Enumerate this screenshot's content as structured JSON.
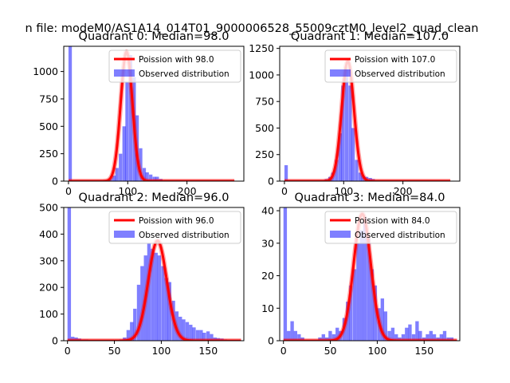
{
  "figure_title": "n file: modeM0/AS1A14_014T01_9000006528_55009cztM0_level2_quad_clean",
  "colors": {
    "poisson": "#ff0000",
    "observed": "#0000ff",
    "axis": "#000000",
    "background": "#ffffff"
  },
  "chart_data": [
    {
      "type": "bar",
      "title": "Quadrant 0: Median=98.0",
      "xlabel": "",
      "ylabel": "",
      "xlim": [
        -8,
        296
      ],
      "ylim": [
        0,
        1230
      ],
      "xticks": [
        0,
        100,
        200
      ],
      "yticks": [
        0,
        250,
        500,
        750,
        1000
      ],
      "legend_position": "top-right",
      "legend": [
        "Poission with 98.0",
        "Observed distribution"
      ],
      "bin_width": 5.7,
      "observed": {
        "name": "Observed distribution",
        "x": [
          0,
          62,
          68,
          74,
          79,
          85,
          91,
          96,
          102,
          108,
          113,
          119,
          125,
          130,
          136,
          142,
          147,
          153,
          159,
          165
        ],
        "values": [
          1230,
          10,
          30,
          50,
          120,
          250,
          500,
          900,
          1150,
          950,
          600,
          300,
          120,
          80,
          60,
          40,
          40,
          20,
          10,
          5
        ]
      },
      "poisson": {
        "name": "Poission with 98.0",
        "mean": 98.0,
        "peak": 1180,
        "x_range": [
          0,
          280
        ]
      }
    },
    {
      "type": "bar",
      "title": "Quadrant 1: Median=107.0",
      "xlabel": "",
      "ylabel": "",
      "xlim": [
        -8,
        296
      ],
      "ylim": [
        0,
        1270
      ],
      "xticks": [
        0,
        100,
        200
      ],
      "yticks": [
        0,
        250,
        500,
        750,
        1000,
        1250
      ],
      "legend_position": "top-right",
      "legend": [
        "Poission with 107.0",
        "Observed distribution"
      ],
      "bin_width": 5.7,
      "observed": {
        "name": "Observed distribution",
        "x": [
          0,
          62,
          68,
          74,
          79,
          85,
          91,
          96,
          102,
          108,
          113,
          119,
          125,
          130,
          136,
          142,
          147,
          153,
          159
        ],
        "values": [
          150,
          10,
          20,
          40,
          80,
          200,
          450,
          900,
          1050,
          900,
          500,
          200,
          80,
          50,
          40,
          30,
          20,
          10,
          5
        ]
      },
      "poisson": {
        "name": "Poission with 107.0",
        "mean": 107.0,
        "peak": 1130,
        "x_range": [
          0,
          280
        ]
      }
    },
    {
      "type": "bar",
      "title": "Quadrant 2: Median=96.0",
      "xlabel": "",
      "ylabel": "",
      "xlim": [
        -4,
        188
      ],
      "ylim": [
        0,
        500
      ],
      "xticks": [
        0,
        50,
        100,
        150
      ],
      "yticks": [
        0,
        100,
        200,
        300,
        400,
        500
      ],
      "legend_position": "top-right",
      "legend": [
        "Poission with 96.0",
        "Observed distribution"
      ],
      "bin_width": 3.7,
      "observed": {
        "name": "Observed distribution",
        "x": [
          0,
          3.7,
          7.4,
          11,
          15,
          18.5,
          22,
          26,
          29.6,
          33,
          37,
          40.7,
          44,
          48,
          51.8,
          55,
          59,
          62.9,
          66.6,
          70,
          74,
          77.7,
          81.4,
          85,
          88.8,
          92.5,
          96,
          99.9,
          103.6,
          107,
          111,
          114.7,
          118.4,
          122,
          125.8,
          129.5,
          133,
          136.9,
          140.6,
          144,
          148,
          151.7,
          155.4,
          159,
          162.8,
          166.5,
          170,
          173.9,
          177.6,
          181
        ],
        "values": [
          500,
          15,
          12,
          8,
          5,
          5,
          3,
          2,
          2,
          2,
          2,
          2,
          2,
          3,
          3,
          5,
          12,
          40,
          70,
          120,
          210,
          280,
          320,
          365,
          345,
          330,
          320,
          280,
          235,
          220,
          150,
          110,
          90,
          80,
          70,
          60,
          50,
          40,
          40,
          30,
          35,
          25,
          12,
          10,
          8,
          5,
          3,
          2,
          1,
          0
        ]
      },
      "poisson": {
        "name": "Poission with 96.0",
        "mean": 96.0,
        "peak": 375,
        "x_range": [
          0,
          185
        ]
      }
    },
    {
      "type": "bar",
      "title": "Quadrant 3: Median=84.0",
      "xlabel": "",
      "ylabel": "",
      "xlim": [
        -4,
        188
      ],
      "ylim": [
        0,
        41
      ],
      "xticks": [
        0,
        50,
        100,
        150
      ],
      "yticks": [
        0,
        10,
        20,
        30,
        40
      ],
      "legend_position": "top-right",
      "legend": [
        "Poission with 84.0",
        "Observed distribution"
      ],
      "bin_width": 3.7,
      "observed": {
        "name": "Observed distribution",
        "x": [
          0,
          3.7,
          7.4,
          11,
          14.8,
          18.5,
          37,
          40.7,
          44.4,
          48,
          51.8,
          55.5,
          59,
          62.9,
          66.6,
          70,
          74,
          77.7,
          81.4,
          85,
          88.8,
          92.5,
          96,
          99.9,
          103.6,
          107,
          111,
          114.7,
          118.4,
          122,
          125.8,
          129.5,
          133,
          136.9,
          140.6,
          144,
          148,
          151.7,
          155.4,
          159,
          162.8,
          166.5,
          170,
          173.9,
          177.6
        ],
        "values": [
          41,
          3,
          6,
          3,
          2,
          1,
          1,
          2,
          1,
          3,
          2,
          4,
          3,
          7,
          12,
          17,
          22,
          30,
          34,
          38,
          32,
          22,
          17,
          10,
          13,
          9,
          3,
          4,
          2,
          1,
          2,
          4,
          5,
          2,
          6,
          3,
          1,
          2,
          3,
          2,
          1,
          2,
          3,
          1,
          1
        ]
      },
      "poisson": {
        "name": "Poission with 84.0",
        "mean": 84.0,
        "peak": 39,
        "x_range": [
          0,
          185
        ]
      }
    }
  ]
}
